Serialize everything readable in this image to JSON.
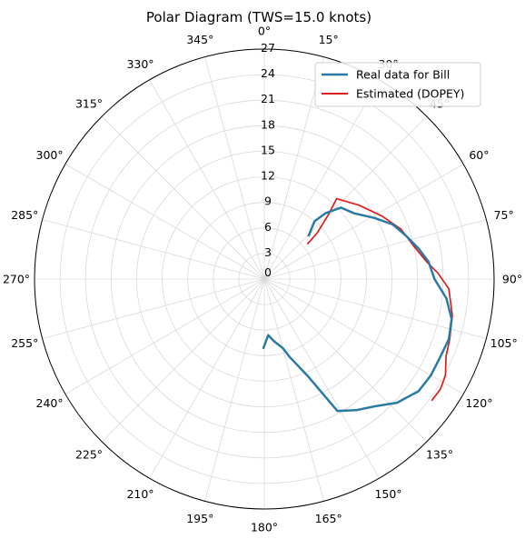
{
  "chart_data": {
    "type": "line",
    "subtype": "polar",
    "title": "Polar Diagram (TWS=15.0 knots)",
    "theta_zero": "top",
    "theta_direction": "clockwise",
    "theta_ticks": [
      0,
      15,
      30,
      45,
      60,
      75,
      90,
      105,
      120,
      135,
      150,
      165,
      180,
      195,
      210,
      225,
      240,
      255,
      270,
      285,
      300,
      315,
      330,
      345
    ],
    "theta_tick_labels": [
      "0°",
      "15°",
      "30°",
      "45°",
      "60°",
      "75°",
      "90°",
      "105°",
      "120°",
      "135°",
      "150°",
      "165°",
      "180°",
      "195°",
      "210°",
      "225°",
      "240°",
      "255°",
      "270°",
      "285°",
      "300°",
      "315°",
      "330°",
      "345°"
    ],
    "r_ticks": [
      0,
      3,
      6,
      9,
      12,
      15,
      18,
      21,
      24,
      27
    ],
    "r_tick_labels": [
      "0",
      "3",
      "6",
      "9",
      "12",
      "15",
      "18",
      "21",
      "24",
      "27"
    ],
    "rlim": [
      0,
      27
    ],
    "grid": true,
    "legend_position": "top-right",
    "series": [
      {
        "name": "Real data for Bill",
        "color": "#2a7aa6",
        "points": [
          {
            "theta": 46,
            "r": 7.2
          },
          {
            "theta": 41,
            "r": 9.0
          },
          {
            "theta": 43,
            "r": 10.6
          },
          {
            "theta": 47,
            "r": 12.3
          },
          {
            "theta": 54,
            "r": 13.1
          },
          {
            "theta": 61,
            "r": 14.8
          },
          {
            "theta": 67,
            "r": 16.4
          },
          {
            "theta": 73,
            "r": 17.4
          },
          {
            "theta": 79,
            "r": 18.5
          },
          {
            "theta": 84,
            "r": 19.4
          },
          {
            "theta": 90,
            "r": 20.0
          },
          {
            "theta": 96,
            "r": 21.5
          },
          {
            "theta": 102,
            "r": 22.5
          },
          {
            "theta": 108,
            "r": 22.8
          },
          {
            "theta": 114,
            "r": 22.6
          },
          {
            "theta": 120,
            "r": 22.6
          },
          {
            "theta": 126,
            "r": 22.4
          },
          {
            "theta": 133,
            "r": 21.3
          },
          {
            "theta": 139,
            "r": 19.8
          },
          {
            "theta": 145,
            "r": 18.8
          },
          {
            "theta": 151,
            "r": 17.7
          },
          {
            "theta": 156,
            "r": 12.4
          },
          {
            "theta": 162,
            "r": 9.6
          },
          {
            "theta": 165,
            "r": 8.4
          },
          {
            "theta": 171,
            "r": 7.4
          },
          {
            "theta": 176,
            "r": 6.6
          },
          {
            "theta": 181,
            "r": 8.2
          }
        ]
      },
      {
        "name": "Estimated (DOPEY)",
        "color": "#d62020",
        "points": [
          {
            "theta": 51,
            "r": 6.5
          },
          {
            "theta": 49,
            "r": 8.2
          },
          {
            "theta": 45,
            "r": 10.6
          },
          {
            "theta": 42,
            "r": 12.7
          },
          {
            "theta": 52,
            "r": 14.1
          },
          {
            "theta": 62,
            "r": 15.7
          },
          {
            "theta": 70,
            "r": 17.1
          },
          {
            "theta": 77,
            "r": 17.9
          },
          {
            "theta": 84,
            "r": 19.2
          },
          {
            "theta": 88,
            "r": 20.4
          },
          {
            "theta": 93,
            "r": 21.7
          },
          {
            "theta": 101,
            "r": 22.5
          },
          {
            "theta": 108,
            "r": 22.9
          },
          {
            "theta": 113,
            "r": 23.2
          },
          {
            "theta": 118,
            "r": 24.1
          },
          {
            "theta": 122,
            "r": 24.4
          },
          {
            "theta": 126,
            "r": 24.3
          }
        ]
      }
    ]
  }
}
